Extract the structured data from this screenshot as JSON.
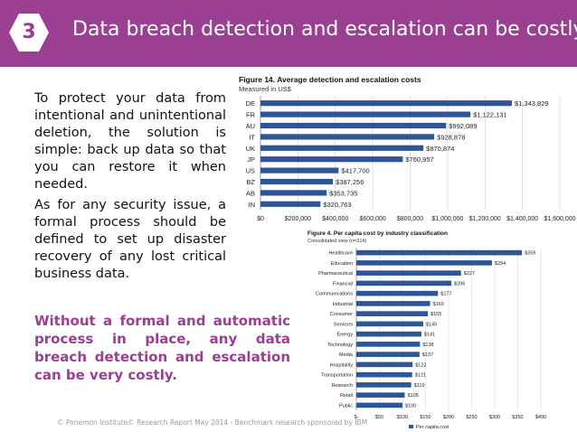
{
  "slide": {
    "number": "3",
    "title": "Data breach detection and escalation can be costly",
    "paragraph1": "To protect your data from intentional and unintentional deletion, the solution is simple: back up data so that you can restore it when needed.",
    "paragraph2": "As for any security issue, a formal process should be defined to set up disaster recovery of any lost critical business data.",
    "callout": "Without a formal and automatic process in place, any data breach detection and escalation can be very costly.",
    "footer": "© Ponemon Institute© Research Report May 2014 - Benchmark research sponsored by IBM"
  },
  "colors": {
    "header": "#9a3f91",
    "bar": "#2e5597",
    "text": "#111111"
  },
  "chart_data": [
    {
      "type": "bar",
      "orientation": "horizontal",
      "title": "Figure 14. Average detection and escalation costs",
      "subtitle": "Measured in US$",
      "categories": [
        "DE",
        "FR",
        "AU",
        "IT",
        "UK",
        "JP",
        "US",
        "BZ",
        "AB",
        "IN"
      ],
      "values": [
        1343829,
        1122131,
        992089,
        928878,
        870874,
        760957,
        417700,
        387256,
        353735,
        320763
      ],
      "labels": [
        "$1,343,829",
        "$1,122,131",
        "$992,089",
        "$928,878",
        "$870,874",
        "$760,957",
        "$417,700",
        "$387,256",
        "$353,735",
        "$320,763"
      ],
      "xlim": [
        0,
        1600000
      ],
      "xticks": [
        "$0",
        "$200,000",
        "$400,000",
        "$600,000",
        "$800,000",
        "$1,000,000",
        "$1,200,000",
        "$1,400,000",
        "$1,600,000"
      ],
      "grid": true
    },
    {
      "type": "bar",
      "orientation": "horizontal",
      "title": "Figure 4. Per capita cost by industry classification",
      "subtitle": "Consolidated view (n=314)",
      "categories": [
        "Healthcare",
        "Education",
        "Pharmaceutical",
        "Financial",
        "Communications",
        "Industrial",
        "Consumer",
        "Services",
        "Energy",
        "Technology",
        "Media",
        "Hospitality",
        "Transportation",
        "Research",
        "Retail",
        "Public"
      ],
      "values": [
        359,
        294,
        227,
        206,
        177,
        160,
        155,
        145,
        141,
        138,
        137,
        122,
        121,
        119,
        105,
        100
      ],
      "labels": [
        "$359",
        "$294",
        "$227",
        "$206",
        "$177",
        "$160",
        "$155",
        "$145",
        "$141",
        "$138",
        "$137",
        "$122",
        "$121",
        "$119",
        "$105",
        "$100"
      ],
      "xlim": [
        0,
        400
      ],
      "xticks": [
        "$-",
        "$50",
        "$100",
        "$150",
        "$200",
        "$250",
        "$300",
        "$350",
        "$400"
      ],
      "legend": "Per capita cost",
      "grid": true
    }
  ]
}
